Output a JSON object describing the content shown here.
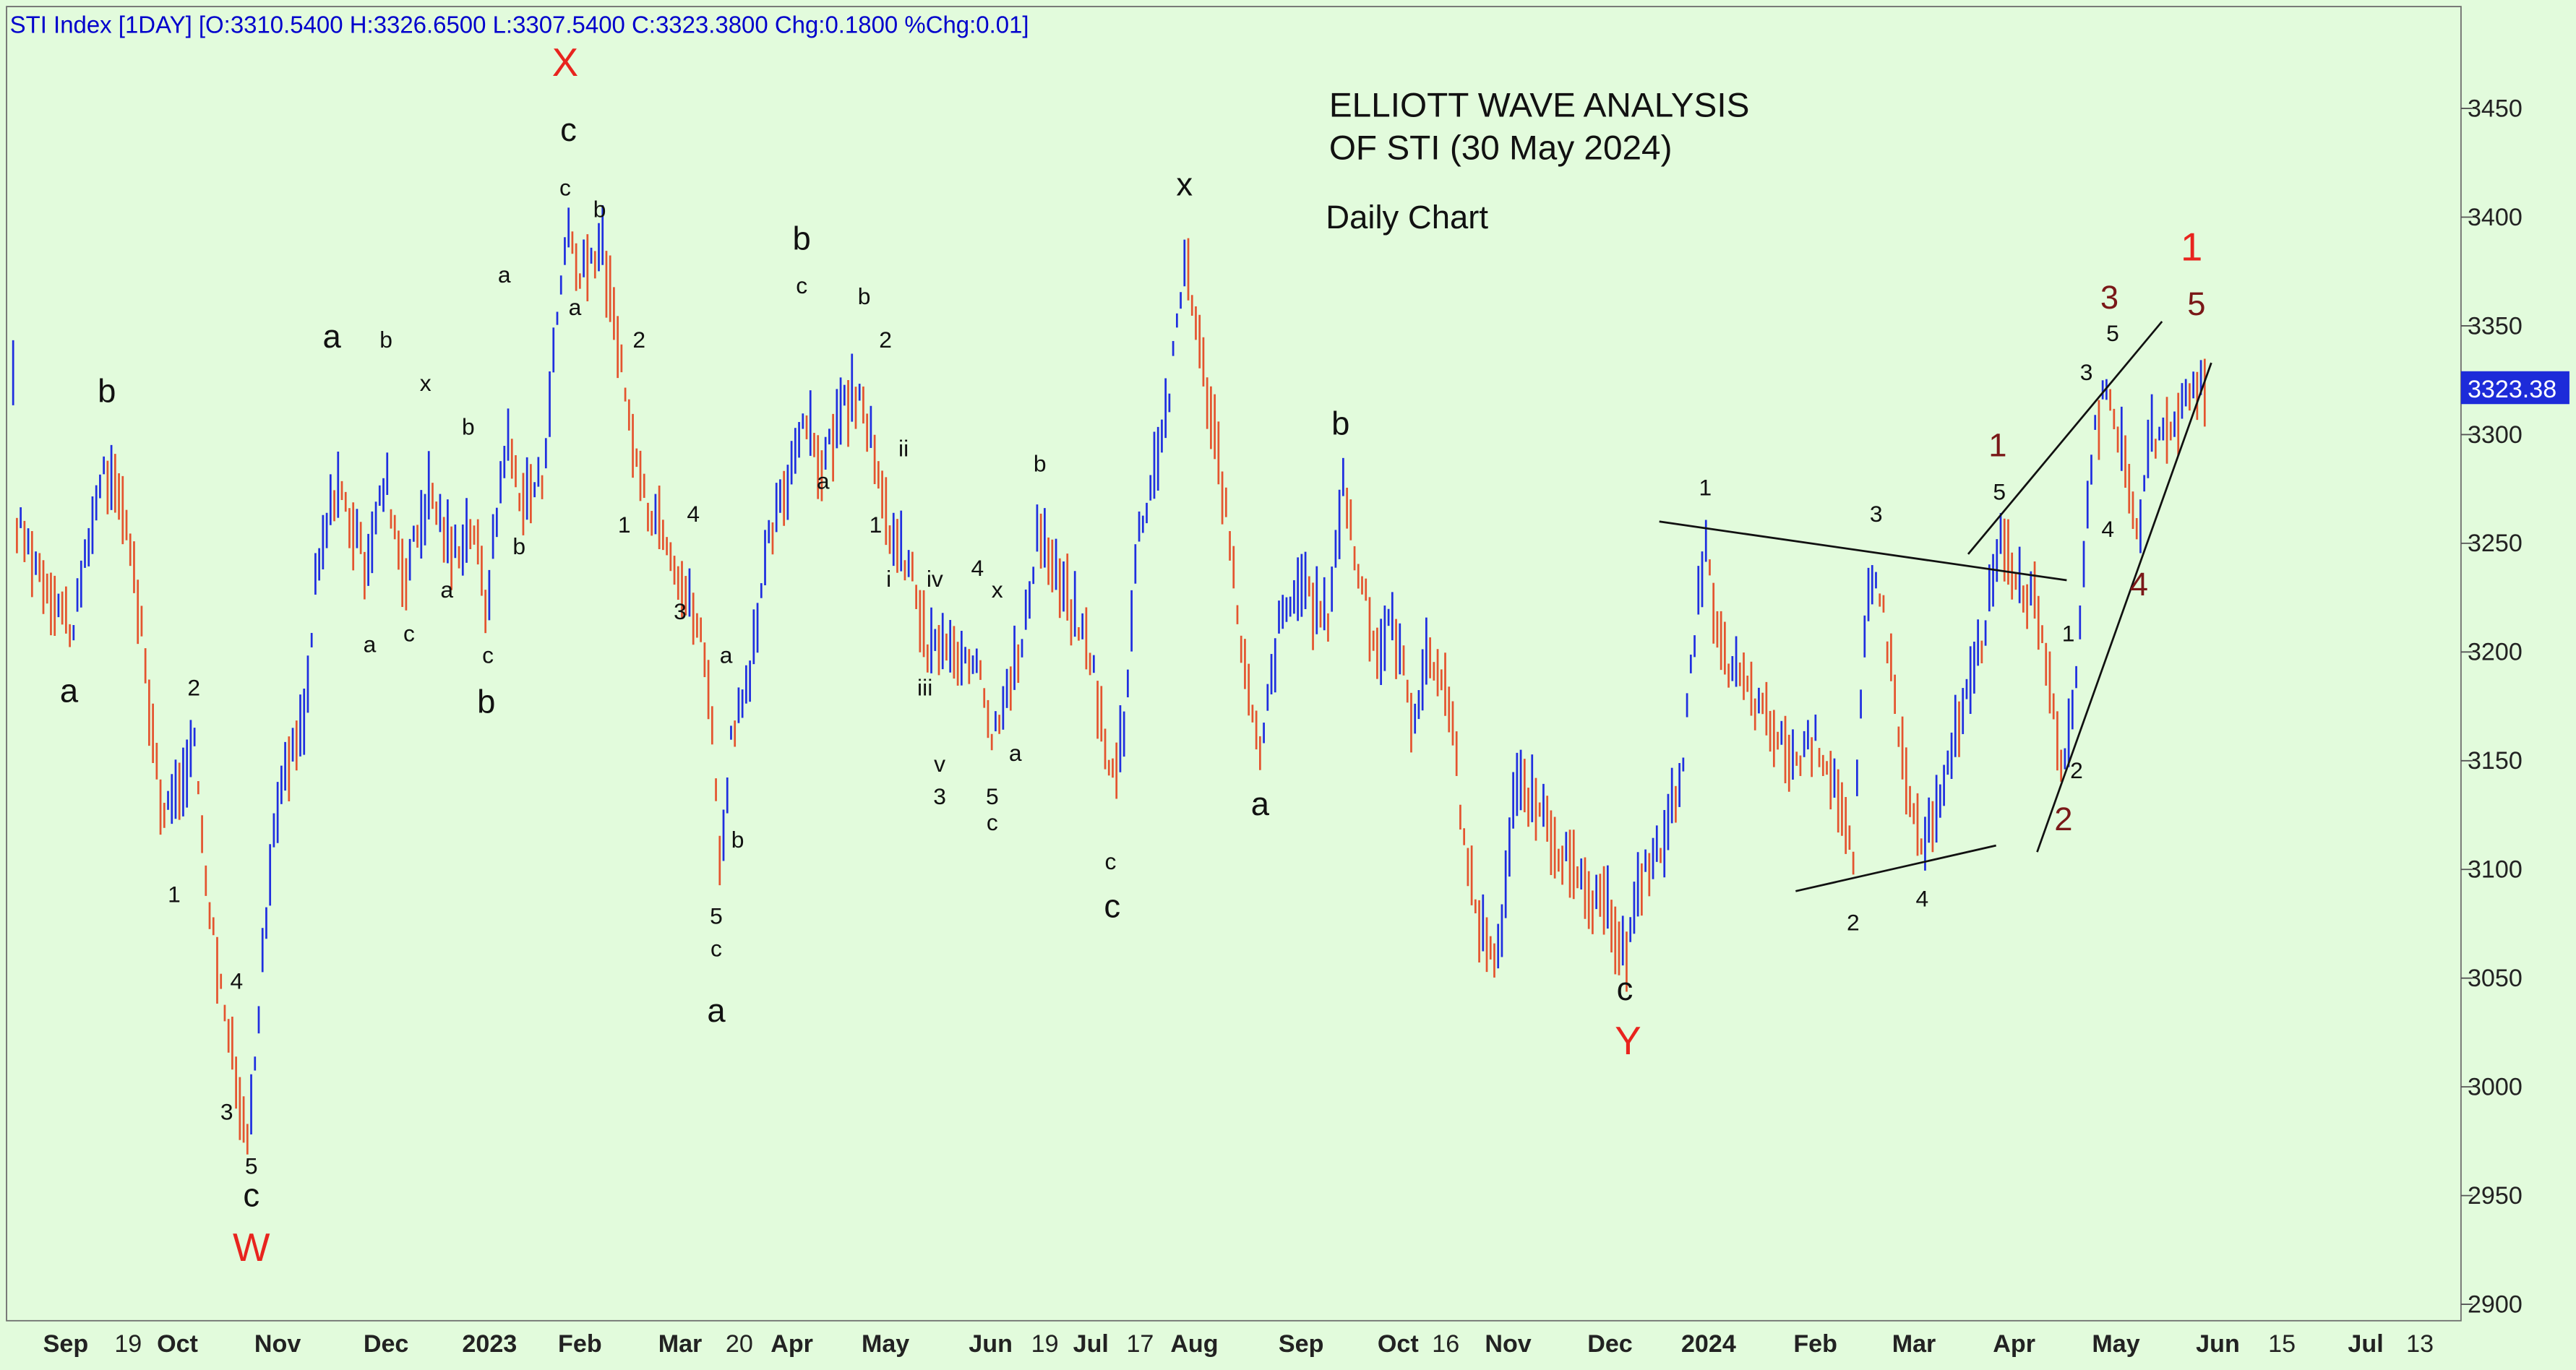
{
  "header": {
    "symbol_line": "STI Index [1DAY] [O:3310.5400 H:3326.6500 L:3307.5400 C:3323.3800 Chg:0.1800 %Chg:0.01]"
  },
  "chart_data": {
    "type": "ohlc-bar",
    "title": "ELLIOTT WAVE ANALYSIS",
    "title_line2": "OF STI (30 May 2024)",
    "subtitle": "Daily Chart",
    "last_price_label": "3323.38",
    "last_price": 3323.38,
    "ylim": [
      2890,
      3490
    ],
    "y_ticks": [
      2900,
      2950,
      3000,
      3050,
      3100,
      3150,
      3200,
      3250,
      3300,
      3350,
      3400,
      3450
    ],
    "x_ticks": [
      {
        "label": "Sep",
        "x": 40
      },
      {
        "label": "19",
        "x": 78
      },
      {
        "label": "Oct",
        "x": 108
      },
      {
        "label": "Nov",
        "x": 169
      },
      {
        "label": "Dec",
        "x": 235
      },
      {
        "label": "2023",
        "x": 298
      },
      {
        "label": "Feb",
        "x": 353
      },
      {
        "label": "Mar",
        "x": 414
      },
      {
        "label": "20",
        "x": 450
      },
      {
        "label": "Apr",
        "x": 482
      },
      {
        "label": "May",
        "x": 539
      },
      {
        "label": "Jun",
        "x": 603
      },
      {
        "label": "19",
        "x": 636
      },
      {
        "label": "Jul",
        "x": 664
      },
      {
        "label": "17",
        "x": 694
      },
      {
        "label": "Aug",
        "x": 727
      },
      {
        "label": "Sep",
        "x": 792
      },
      {
        "label": "Oct",
        "x": 851
      },
      {
        "label": "16",
        "x": 880
      },
      {
        "label": "Nov",
        "x": 918
      },
      {
        "label": "Dec",
        "x": 980
      },
      {
        "label": "2024",
        "x": 1040
      },
      {
        "label": "Feb",
        "x": 1105
      },
      {
        "label": "Mar",
        "x": 1165
      },
      {
        "label": "Apr",
        "x": 1226
      },
      {
        "label": "May",
        "x": 1288
      },
      {
        "label": "Jun",
        "x": 1350
      },
      {
        "label": "15",
        "x": 1389
      },
      {
        "label": "Jul",
        "x": 1440
      },
      {
        "label": "13",
        "x": 1473
      }
    ],
    "price_path": [
      [
        10,
        3260
      ],
      [
        30,
        3230
      ],
      [
        45,
        3210
      ],
      [
        62,
        3285
      ],
      [
        78,
        3260
      ],
      [
        100,
        3120
      ],
      [
        118,
        3160
      ],
      [
        128,
        3080
      ],
      [
        140,
        3020
      ],
      [
        150,
        2975
      ],
      [
        158,
        3040
      ],
      [
        168,
        3130
      ],
      [
        186,
        3170
      ],
      [
        192,
        3230
      ],
      [
        205,
        3280
      ],
      [
        222,
        3240
      ],
      [
        235,
        3280
      ],
      [
        246,
        3235
      ],
      [
        262,
        3275
      ],
      [
        275,
        3245
      ],
      [
        288,
        3260
      ],
      [
        296,
        3220
      ],
      [
        308,
        3300
      ],
      [
        318,
        3270
      ],
      [
        330,
        3280
      ],
      [
        340,
        3360
      ],
      [
        346,
        3400
      ],
      [
        352,
        3370
      ],
      [
        366,
        3390
      ],
      [
        380,
        3320
      ],
      [
        392,
        3270
      ],
      [
        404,
        3260
      ],
      [
        416,
        3230
      ],
      [
        426,
        3210
      ],
      [
        434,
        3170
      ],
      [
        438,
        3100
      ],
      [
        445,
        3160
      ],
      [
        455,
        3180
      ],
      [
        468,
        3250
      ],
      [
        480,
        3280
      ],
      [
        488,
        3310
      ],
      [
        500,
        3285
      ],
      [
        512,
        3310
      ],
      [
        525,
        3320
      ],
      [
        536,
        3270
      ],
      [
        545,
        3250
      ],
      [
        556,
        3235
      ],
      [
        564,
        3200
      ],
      [
        574,
        3205
      ],
      [
        585,
        3190
      ],
      [
        596,
        3200
      ],
      [
        604,
        3160
      ],
      [
        612,
        3185
      ],
      [
        622,
        3200
      ],
      [
        632,
        3260
      ],
      [
        640,
        3240
      ],
      [
        652,
        3220
      ],
      [
        664,
        3200
      ],
      [
        676,
        3140
      ],
      [
        684,
        3165
      ],
      [
        692,
        3250
      ],
      [
        704,
        3290
      ],
      [
        712,
        3320
      ],
      [
        722,
        3385
      ],
      [
        730,
        3340
      ],
      [
        740,
        3300
      ],
      [
        750,
        3240
      ],
      [
        760,
        3180
      ],
      [
        767,
        3150
      ],
      [
        778,
        3210
      ],
      [
        790,
        3230
      ],
      [
        808,
        3215
      ],
      [
        818,
        3280
      ],
      [
        826,
        3240
      ],
      [
        838,
        3200
      ],
      [
        848,
        3215
      ],
      [
        860,
        3170
      ],
      [
        870,
        3200
      ],
      [
        882,
        3180
      ],
      [
        893,
        3100
      ],
      [
        903,
        3070
      ],
      [
        912,
        3060
      ],
      [
        922,
        3140
      ],
      [
        934,
        3130
      ],
      [
        946,
        3115
      ],
      [
        956,
        3100
      ],
      [
        968,
        3085
      ],
      [
        980,
        3080
      ],
      [
        990,
        3060
      ],
      [
        1000,
        3100
      ],
      [
        1012,
        3110
      ],
      [
        1024,
        3150
      ],
      [
        1032,
        3210
      ],
      [
        1038,
        3250
      ],
      [
        1046,
        3200
      ],
      [
        1058,
        3190
      ],
      [
        1070,
        3175
      ],
      [
        1082,
        3160
      ],
      [
        1094,
        3150
      ],
      [
        1106,
        3160
      ],
      [
        1118,
        3140
      ],
      [
        1128,
        3100
      ],
      [
        1136,
        3220
      ],
      [
        1142,
        3240
      ],
      [
        1152,
        3190
      ],
      [
        1160,
        3140
      ],
      [
        1170,
        3110
      ],
      [
        1182,
        3130
      ],
      [
        1192,
        3170
      ],
      [
        1202,
        3190
      ],
      [
        1210,
        3220
      ],
      [
        1218,
        3250
      ],
      [
        1228,
        3235
      ],
      [
        1240,
        3220
      ],
      [
        1250,
        3180
      ],
      [
        1256,
        3140
      ],
      [
        1262,
        3170
      ],
      [
        1268,
        3240
      ],
      [
        1274,
        3300
      ],
      [
        1284,
        3325
      ],
      [
        1292,
        3290
      ],
      [
        1300,
        3250
      ],
      [
        1310,
        3300
      ],
      [
        1318,
        3295
      ],
      [
        1326,
        3310
      ],
      [
        1336,
        3325
      ],
      [
        1343,
        3323
      ]
    ],
    "wave_labels": [
      {
        "text": "X",
        "x": 344,
        "y": 3465,
        "color": "red",
        "size": "big"
      },
      {
        "text": "c",
        "x": 346,
        "y": 3435,
        "color": "black",
        "size": "med"
      },
      {
        "text": "c",
        "x": 344,
        "y": 3410,
        "color": "black",
        "size": "small"
      },
      {
        "text": "b",
        "x": 365,
        "y": 3400,
        "color": "black",
        "size": "small"
      },
      {
        "text": "a",
        "x": 350,
        "y": 3355,
        "color": "black",
        "size": "small"
      },
      {
        "text": "2",
        "x": 389,
        "y": 3340,
        "color": "black",
        "size": "small"
      },
      {
        "text": "1",
        "x": 380,
        "y": 3255,
        "color": "black",
        "size": "small"
      },
      {
        "text": "4",
        "x": 422,
        "y": 3260,
        "color": "black",
        "size": "small"
      },
      {
        "text": "3",
        "x": 414,
        "y": 3215,
        "color": "black",
        "size": "small"
      },
      {
        "text": "a",
        "x": 442,
        "y": 3195,
        "color": "black",
        "size": "small"
      },
      {
        "text": "b",
        "x": 449,
        "y": 3110,
        "color": "black",
        "size": "small"
      },
      {
        "text": "5",
        "x": 436,
        "y": 3075,
        "color": "black",
        "size": "small"
      },
      {
        "text": "c",
        "x": 436,
        "y": 3060,
        "color": "black",
        "size": "small"
      },
      {
        "text": "a",
        "x": 436,
        "y": 3030,
        "color": "black",
        "size": "med"
      },
      {
        "text": "b",
        "x": 488,
        "y": 3385,
        "color": "black",
        "size": "med"
      },
      {
        "text": "c",
        "x": 488,
        "y": 3365,
        "color": "black",
        "size": "small"
      },
      {
        "text": "b",
        "x": 526,
        "y": 3360,
        "color": "black",
        "size": "small"
      },
      {
        "text": "2",
        "x": 539,
        "y": 3340,
        "color": "black",
        "size": "small"
      },
      {
        "text": "a",
        "x": 501,
        "y": 3275,
        "color": "black",
        "size": "small"
      },
      {
        "text": "ii",
        "x": 550,
        "y": 3290,
        "color": "black",
        "size": "small"
      },
      {
        "text": "1",
        "x": 533,
        "y": 3255,
        "color": "black",
        "size": "small"
      },
      {
        "text": "i",
        "x": 541,
        "y": 3230,
        "color": "black",
        "size": "small"
      },
      {
        "text": "iv",
        "x": 569,
        "y": 3230,
        "color": "black",
        "size": "small"
      },
      {
        "text": "4",
        "x": 595,
        "y": 3235,
        "color": "black",
        "size": "small"
      },
      {
        "text": "x",
        "x": 607,
        "y": 3225,
        "color": "black",
        "size": "small"
      },
      {
        "text": "iii",
        "x": 563,
        "y": 3180,
        "color": "black",
        "size": "small"
      },
      {
        "text": "v",
        "x": 572,
        "y": 3145,
        "color": "black",
        "size": "small"
      },
      {
        "text": "3",
        "x": 572,
        "y": 3130,
        "color": "black",
        "size": "small"
      },
      {
        "text": "a",
        "x": 618,
        "y": 3150,
        "color": "black",
        "size": "small"
      },
      {
        "text": "5",
        "x": 604,
        "y": 3130,
        "color": "black",
        "size": "small"
      },
      {
        "text": "c",
        "x": 604,
        "y": 3118,
        "color": "black",
        "size": "small"
      },
      {
        "text": "b",
        "x": 633,
        "y": 3283,
        "color": "black",
        "size": "small"
      },
      {
        "text": "c",
        "x": 676,
        "y": 3100,
        "color": "black",
        "size": "small"
      },
      {
        "text": "c",
        "x": 677,
        "y": 3078,
        "color": "black",
        "size": "med"
      },
      {
        "text": "x",
        "x": 721,
        "y": 3410,
        "color": "black",
        "size": "med"
      },
      {
        "text": "a",
        "x": 767,
        "y": 3125,
        "color": "black",
        "size": "med"
      },
      {
        "text": "b",
        "x": 816,
        "y": 3300,
        "color": "black",
        "size": "med"
      },
      {
        "text": "c",
        "x": 989,
        "y": 3040,
        "color": "black",
        "size": "med"
      },
      {
        "text": "Y",
        "x": 991,
        "y": 3015,
        "color": "red",
        "size": "big"
      },
      {
        "text": "a",
        "x": 42,
        "y": 3177,
        "color": "black",
        "size": "med"
      },
      {
        "text": "b",
        "x": 65,
        "y": 3315,
        "color": "black",
        "size": "med"
      },
      {
        "text": "2",
        "x": 118,
        "y": 3180,
        "color": "black",
        "size": "small"
      },
      {
        "text": "1",
        "x": 106,
        "y": 3085,
        "color": "black",
        "size": "small"
      },
      {
        "text": "4",
        "x": 144,
        "y": 3045,
        "color": "black",
        "size": "small"
      },
      {
        "text": "3",
        "x": 138,
        "y": 2985,
        "color": "black",
        "size": "small"
      },
      {
        "text": "5",
        "x": 153,
        "y": 2960,
        "color": "black",
        "size": "small"
      },
      {
        "text": "c",
        "x": 153,
        "y": 2945,
        "color": "black",
        "size": "med"
      },
      {
        "text": "W",
        "x": 153,
        "y": 2920,
        "color": "red",
        "size": "big"
      },
      {
        "text": "a",
        "x": 202,
        "y": 3340,
        "color": "black",
        "size": "med"
      },
      {
        "text": "b",
        "x": 235,
        "y": 3340,
        "color": "black",
        "size": "small"
      },
      {
        "text": "x",
        "x": 259,
        "y": 3320,
        "color": "black",
        "size": "small"
      },
      {
        "text": "b",
        "x": 285,
        "y": 3300,
        "color": "black",
        "size": "small"
      },
      {
        "text": "a",
        "x": 307,
        "y": 3370,
        "color": "black",
        "size": "small"
      },
      {
        "text": "a",
        "x": 225,
        "y": 3200,
        "color": "black",
        "size": "small"
      },
      {
        "text": "c",
        "x": 249,
        "y": 3205,
        "color": "black",
        "size": "small"
      },
      {
        "text": "a",
        "x": 272,
        "y": 3225,
        "color": "black",
        "size": "small"
      },
      {
        "text": "b",
        "x": 316,
        "y": 3245,
        "color": "black",
        "size": "small"
      },
      {
        "text": "c",
        "x": 297,
        "y": 3195,
        "color": "black",
        "size": "small"
      },
      {
        "text": "b",
        "x": 296,
        "y": 3172,
        "color": "black",
        "size": "med"
      },
      {
        "text": "1",
        "x": 1038,
        "y": 3272,
        "color": "black",
        "size": "small"
      },
      {
        "text": "3",
        "x": 1142,
        "y": 3260,
        "color": "black",
        "size": "small"
      },
      {
        "text": "2",
        "x": 1128,
        "y": 3072,
        "color": "black",
        "size": "small"
      },
      {
        "text": "4",
        "x": 1170,
        "y": 3083,
        "color": "black",
        "size": "small"
      },
      {
        "text": "1",
        "x": 1216,
        "y": 3290,
        "color": "darkred",
        "size": "med"
      },
      {
        "text": "5",
        "x": 1217,
        "y": 3270,
        "color": "black",
        "size": "small"
      },
      {
        "text": "1",
        "x": 1259,
        "y": 3205,
        "color": "black",
        "size": "small"
      },
      {
        "text": "2",
        "x": 1264,
        "y": 3142,
        "color": "black",
        "size": "small"
      },
      {
        "text": "2",
        "x": 1256,
        "y": 3118,
        "color": "darkred",
        "size": "med"
      },
      {
        "text": "3",
        "x": 1284,
        "y": 3358,
        "color": "darkred",
        "size": "med"
      },
      {
        "text": "5",
        "x": 1286,
        "y": 3343,
        "color": "black",
        "size": "small"
      },
      {
        "text": "3",
        "x": 1270,
        "y": 3325,
        "color": "black",
        "size": "small"
      },
      {
        "text": "4",
        "x": 1283,
        "y": 3253,
        "color": "black",
        "size": "small"
      },
      {
        "text": "4",
        "x": 1302,
        "y": 3226,
        "color": "darkred",
        "size": "med"
      },
      {
        "text": "1",
        "x": 1334,
        "y": 3380,
        "color": "red",
        "size": "big"
      },
      {
        "text": "5",
        "x": 1337,
        "y": 3355,
        "color": "darkred",
        "size": "med"
      }
    ],
    "trend_lines": [
      {
        "x1": 1010,
        "y1": 3260,
        "x2": 1258,
        "y2": 3233
      },
      {
        "x1": 1093,
        "y1": 3090,
        "x2": 1215,
        "y2": 3111
      },
      {
        "x1": 1198,
        "y1": 3245,
        "x2": 1316,
        "y2": 3352
      },
      {
        "x1": 1240,
        "y1": 3108,
        "x2": 1346,
        "y2": 3333
      }
    ],
    "colors": {
      "background": "#e2fbdc",
      "bar_up": "#1f2ee0",
      "bar_down": "#e4542f",
      "header_text": "#0000cc",
      "label_red": "#e8241e",
      "label_darkred": "#7a1818",
      "last_price_bg": "#1d2bd9"
    }
  }
}
